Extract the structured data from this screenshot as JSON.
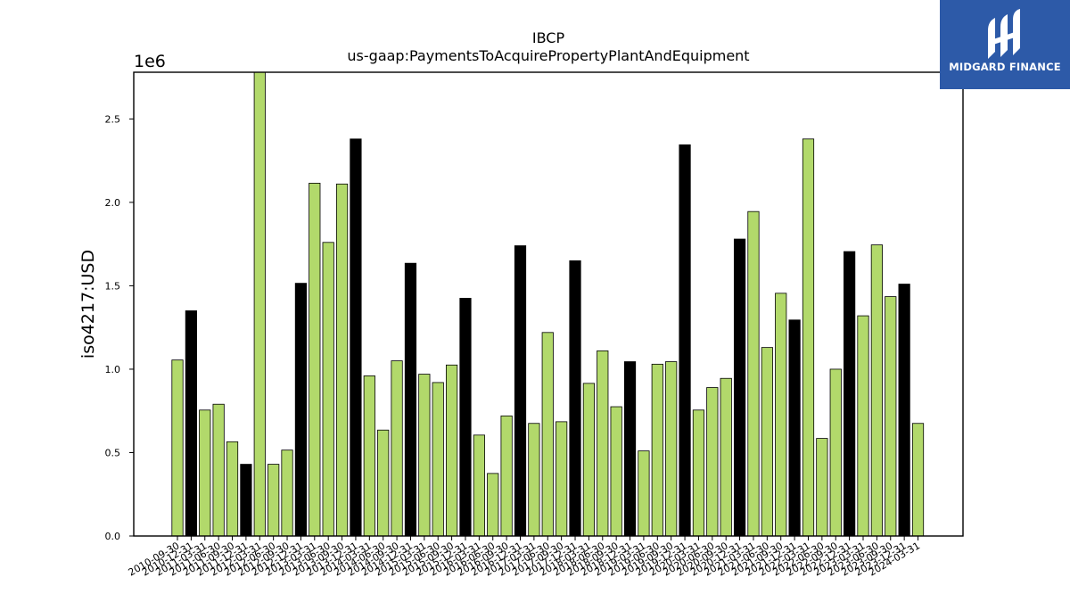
{
  "chart_data": {
    "type": "bar",
    "title": "IBCP",
    "subtitle": "us-gaap:PaymentsToAcquirePropertyPlantAndEquipment",
    "ylabel": "iso4217:USD",
    "xlabel": "",
    "offset_label": "1e6",
    "ylim": [
      0,
      2.78
    ],
    "yticks": [
      0.0,
      0.5,
      1.0,
      1.5,
      2.0,
      2.5
    ],
    "ytick_labels": [
      "0.0",
      "0.5",
      "1.0",
      "1.5",
      "2.0",
      "2.5"
    ],
    "grid": false,
    "colors": {
      "green": "#b2d96b",
      "black": "#000000"
    },
    "categories": [
      "2010-09-30",
      "2010-12-31",
      "2011-03-31",
      "2011-06-30",
      "2011-09-30",
      "2011-12-31",
      "2012-03-31",
      "2012-06-30",
      "2012-09-30",
      "2012-12-31",
      "2013-03-31",
      "2013-06-30",
      "2013-09-30",
      "2013-12-31",
      "2014-03-31",
      "2014-06-30",
      "2014-09-30",
      "2014-12-31",
      "2015-03-31",
      "2015-06-30",
      "2015-09-30",
      "2015-12-31",
      "2016-03-31",
      "2016-06-30",
      "2016-09-30",
      "2016-12-31",
      "2017-03-31",
      "2017-06-30",
      "2017-09-30",
      "2017-12-31",
      "2018-03-31",
      "2018-06-30",
      "2018-09-30",
      "2018-12-31",
      "2019-03-31",
      "2019-06-30",
      "2019-09-30",
      "2019-12-31",
      "2020-03-31",
      "2020-06-30",
      "2020-09-30",
      "2020-12-31",
      "2021-03-31",
      "2021-06-30",
      "2021-09-30",
      "2021-12-31",
      "2022-03-31",
      "2022-06-30",
      "2022-09-30",
      "2022-12-31",
      "2023-03-31",
      "2023-06-30",
      "2023-09-30",
      "2023-12-31",
      "2024-03-31"
    ],
    "values": [
      1.055,
      1.35,
      0.755,
      0.79,
      0.565,
      0.43,
      2.78,
      0.43,
      0.515,
      1.515,
      2.115,
      1.76,
      2.11,
      2.38,
      0.96,
      0.635,
      1.05,
      1.635,
      0.97,
      0.92,
      1.025,
      1.425,
      0.605,
      0.375,
      0.72,
      1.74,
      0.675,
      1.22,
      0.685,
      1.65,
      0.915,
      1.11,
      0.775,
      1.045,
      0.51,
      1.03,
      1.045,
      2.345,
      0.755,
      0.89,
      0.945,
      1.78,
      1.945,
      1.13,
      1.455,
      1.295,
      2.38,
      0.585,
      1.0,
      1.705,
      1.32,
      1.745,
      1.435,
      1.51,
      0.675
    ],
    "bar_colors": [
      "green",
      "black",
      "green",
      "green",
      "green",
      "black",
      "green",
      "green",
      "green",
      "black",
      "green",
      "green",
      "green",
      "black",
      "green",
      "green",
      "green",
      "black",
      "green",
      "green",
      "green",
      "black",
      "green",
      "green",
      "green",
      "black",
      "green",
      "green",
      "green",
      "black",
      "green",
      "green",
      "green",
      "black",
      "green",
      "green",
      "green",
      "black",
      "green",
      "green",
      "green",
      "black",
      "green",
      "green",
      "green",
      "black",
      "green",
      "green",
      "green",
      "black",
      "green",
      "green",
      "green",
      "black",
      "green"
    ]
  },
  "logo": {
    "text": "MIDGARD FINANCE",
    "bg": "#2d5aa8"
  }
}
